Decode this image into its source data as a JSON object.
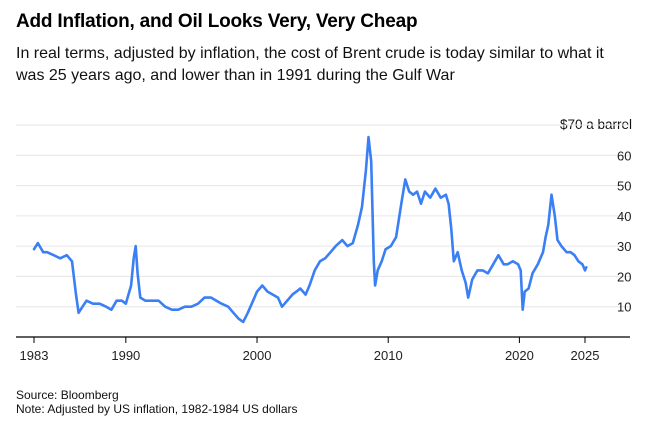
{
  "header": {
    "title": "Add Inflation, and Oil Looks Very, Very Cheap",
    "subtitle": "In real terms, adjusted by inflation, the cost of Brent crude is today similar to what it was 25 years ago, and lower than in 1991 during the Gulf War"
  },
  "footer": {
    "source": "Source: Bloomberg",
    "note": "Note: Adjusted by US inflation, 1982-1984 US dollars"
  },
  "colors": {
    "line": "#3b7ff5",
    "grid": "#e6e6e6",
    "axis": "#000000"
  },
  "chart_data": {
    "type": "line",
    "title": "Add Inflation, and Oil Looks Very, Very Cheap",
    "ylabel": "$70 a barrel",
    "xlabel": "",
    "ylim": [
      0,
      70
    ],
    "xlim": [
      1982.7,
      2027
    ],
    "yticks": [
      10,
      20,
      30,
      40,
      50,
      60,
      70
    ],
    "xticks": [
      1983,
      1990,
      2000,
      2010,
      2020,
      2025
    ],
    "grid": true,
    "legend": "none",
    "series": [
      {
        "name": "",
        "x": [
          1983.0,
          1983.3,
          1983.7,
          1984.0,
          1984.5,
          1985.0,
          1985.5,
          1985.9,
          1986.2,
          1986.4,
          1986.7,
          1987.0,
          1987.5,
          1988.0,
          1988.5,
          1988.9,
          1989.3,
          1989.7,
          1990.0,
          1990.4,
          1990.6,
          1990.75,
          1990.9,
          1991.1,
          1991.5,
          1992.0,
          1992.5,
          1993.0,
          1993.5,
          1994.0,
          1994.5,
          1995.0,
          1995.5,
          1996.0,
          1996.5,
          1996.9,
          1997.3,
          1997.8,
          1998.2,
          1998.6,
          1998.95,
          1999.3,
          1999.7,
          2000.0,
          2000.4,
          2000.8,
          2001.2,
          2001.6,
          2001.9,
          2002.3,
          2002.7,
          2003.0,
          2003.3,
          2003.7,
          2004.0,
          2004.4,
          2004.8,
          2005.2,
          2005.6,
          2006.0,
          2006.5,
          2006.9,
          2007.3,
          2007.7,
          2008.0,
          2008.3,
          2008.5,
          2008.7,
          2008.9,
          2009.0,
          2009.2,
          2009.5,
          2009.8,
          2010.2,
          2010.6,
          2011.0,
          2011.3,
          2011.6,
          2011.9,
          2012.2,
          2012.5,
          2012.8,
          2013.2,
          2013.6,
          2014.0,
          2014.4,
          2014.6,
          2014.8,
          2015.0,
          2015.3,
          2015.6,
          2015.9,
          2016.1,
          2016.4,
          2016.8,
          2017.2,
          2017.6,
          2018.0,
          2018.4,
          2018.8,
          2019.1,
          2019.5,
          2019.9,
          2020.1,
          2020.25,
          2020.4,
          2020.7,
          2021.0,
          2021.4,
          2021.8,
          2022.0,
          2022.2,
          2022.45,
          2022.7,
          2022.9,
          2023.2,
          2023.6,
          2023.9,
          2024.2,
          2024.5,
          2024.8,
          2025.0,
          2025.1
        ],
        "y": [
          29,
          31,
          28,
          28,
          27,
          26,
          27,
          25,
          14,
          8,
          10,
          12,
          11,
          11,
          10,
          9,
          12,
          12,
          11,
          17,
          26,
          30,
          21,
          13,
          12,
          12,
          12,
          10,
          9,
          9,
          10,
          10,
          11,
          13,
          13,
          12,
          11,
          10,
          8,
          6,
          5,
          8,
          12,
          15,
          17,
          15,
          14,
          13,
          10,
          12,
          14,
          15,
          16,
          14,
          17,
          22,
          25,
          26,
          28,
          30,
          32,
          30,
          31,
          37,
          43,
          55,
          66,
          58,
          25,
          17,
          22,
          25,
          29,
          30,
          33,
          44,
          52,
          48,
          47,
          48,
          44,
          48,
          46,
          49,
          46,
          47,
          44,
          36,
          25,
          28,
          22,
          18,
          13,
          19,
          22,
          22,
          21,
          24,
          27,
          24,
          24,
          25,
          24,
          22,
          9,
          15,
          16,
          21,
          24,
          28,
          33,
          37,
          47,
          40,
          32,
          30,
          28,
          28,
          27,
          25,
          24,
          22,
          23
        ]
      }
    ]
  }
}
